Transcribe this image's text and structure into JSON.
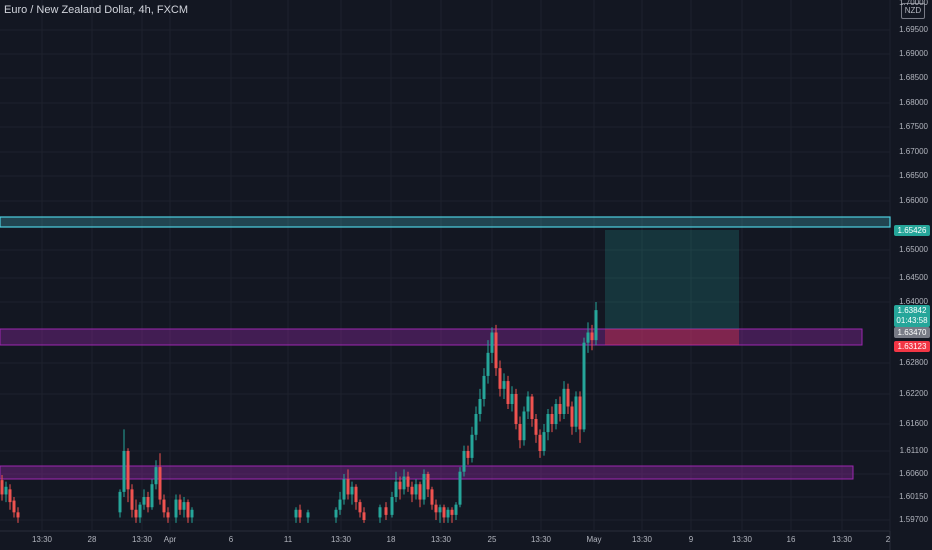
{
  "symbol_title": "Euro / New Zealand Dollar, 4h, FXCM",
  "currency_badge": "NZD",
  "y_axis": {
    "top_partial": "1.70000",
    "labels": [
      {
        "v": 1.695,
        "t": "1.69500"
      },
      {
        "v": 1.69,
        "t": "1.69000"
      },
      {
        "v": 1.685,
        "t": "1.68500"
      },
      {
        "v": 1.68,
        "t": "1.68000"
      },
      {
        "v": 1.675,
        "t": "1.67500"
      },
      {
        "v": 1.67,
        "t": "1.67000"
      },
      {
        "v": 1.665,
        "t": "1.66500"
      },
      {
        "v": 1.66,
        "t": "1.66000"
      },
      {
        "v": 1.65,
        "t": "1.65000"
      },
      {
        "v": 1.645,
        "t": "1.64500"
      },
      {
        "v": 1.64,
        "t": "1.64000"
      },
      {
        "v": 1.628,
        "t": "1.62800"
      },
      {
        "v": 1.622,
        "t": "1.62200"
      },
      {
        "v": 1.616,
        "t": "1.61600"
      },
      {
        "v": 1.611,
        "t": "1.61100"
      },
      {
        "v": 1.606,
        "t": "1.60600"
      },
      {
        "v": 1.6015,
        "t": "1.60150"
      },
      {
        "v": 1.597,
        "t": "1.59700"
      }
    ]
  },
  "x_axis": [
    "13:30",
    "28",
    "13:30",
    "Apr",
    "6",
    "11",
    "13:30",
    "18",
    "13:30",
    "25",
    "13:30",
    "May",
    "13:30",
    "9",
    "13:30",
    "16",
    "13:30",
    "2"
  ],
  "price_tags": {
    "level_top": {
      "text": "1.65426",
      "color": "#26a69a"
    },
    "current": {
      "price": "1.63842",
      "countdown": "01:43:58",
      "color": "#26a69a"
    },
    "entry": {
      "text": "1.63470",
      "color": "#787b86"
    },
    "stop": {
      "text": "1.63123",
      "color": "#f23645"
    }
  },
  "colors": {
    "up": "#26a69a",
    "down": "#ef5350",
    "resistance": "#4dd0e1",
    "zone": "#9c27b0",
    "target": "#26a69a",
    "stop": "#f23645",
    "grid": "#1e222d"
  },
  "chart_data": {
    "type": "candlestick",
    "title": "Euro / New Zealand Dollar, 4h, FXCM",
    "horizontal_levels": [
      {
        "name": "resistance",
        "price": 1.65426
      },
      {
        "name": "upper-zone",
        "from": 1.6315,
        "to": 1.6347
      },
      {
        "name": "lower-zone",
        "from": 1.6057,
        "to": 1.6072
      }
    ],
    "position": {
      "entry": 1.6347,
      "target": 1.65426,
      "stop": 1.63123
    }
  }
}
